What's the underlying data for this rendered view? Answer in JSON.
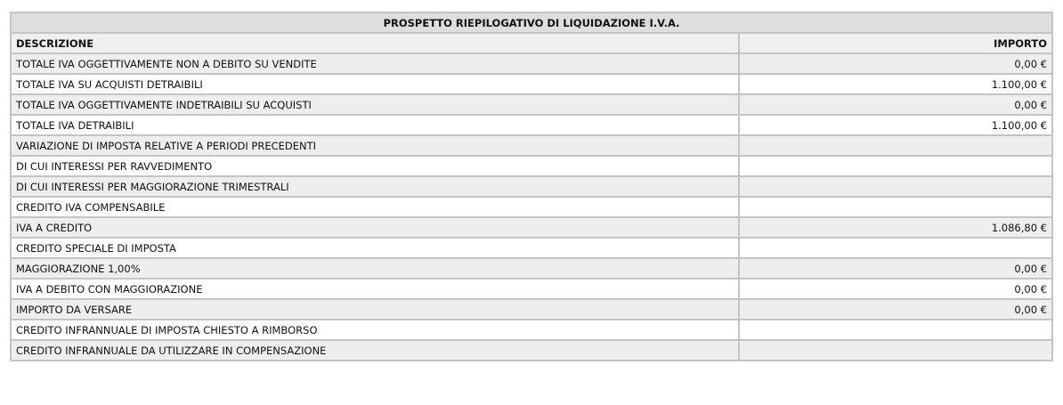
{
  "title": "PROSPETTO RIEPILOGATIVO DI LIQUIDAZIONE I.V.A.",
  "columns": {
    "description": "DESCRIZIONE",
    "amount": "IMPORTO"
  },
  "rows": [
    {
      "label": "TOTALE IVA OGGETTIVAMENTE NON A DEBITO SU VENDITE",
      "value": "0,00 €"
    },
    {
      "label": "TOTALE IVA SU ACQUISTI DETRAIBILI",
      "value": "1.100,00 €"
    },
    {
      "label": "TOTALE IVA OGGETTIVAMENTE INDETRAIBILI SU ACQUISTI",
      "value": "0,00 €"
    },
    {
      "label": "TOTALE IVA DETRAIBILI",
      "value": "1.100,00 €"
    },
    {
      "label": "VARIAZIONE DI IMPOSTA RELATIVE A PERIODI PRECEDENTI",
      "value": ""
    },
    {
      "label": "DI CUI INTERESSI PER RAVVEDIMENTO",
      "value": ""
    },
    {
      "label": "DI CUI INTERESSI PER MAGGIORAZIONE TRIMESTRALI",
      "value": ""
    },
    {
      "label": "CREDITO IVA COMPENSABILE",
      "value": ""
    },
    {
      "label": "IVA A CREDITO",
      "value": "1.086,80 €"
    },
    {
      "label": "CREDITO SPECIALE DI IMPOSTA",
      "value": ""
    },
    {
      "label": "MAGGIORAZIONE 1,00%",
      "value": "0,00 €"
    },
    {
      "label": "IVA A DEBITO CON MAGGIORAZIONE",
      "value": "0,00 €"
    },
    {
      "label": "IMPORTO DA VERSARE",
      "value": "0,00 €"
    },
    {
      "label": "CREDITO INFRANNUALE DI IMPOSTA CHIESTO A RIMBORSO",
      "value": ""
    },
    {
      "label": "CREDITO INFRANNUALE DA UTILIZZARE IN COMPENSAZIONE",
      "value": ""
    }
  ]
}
